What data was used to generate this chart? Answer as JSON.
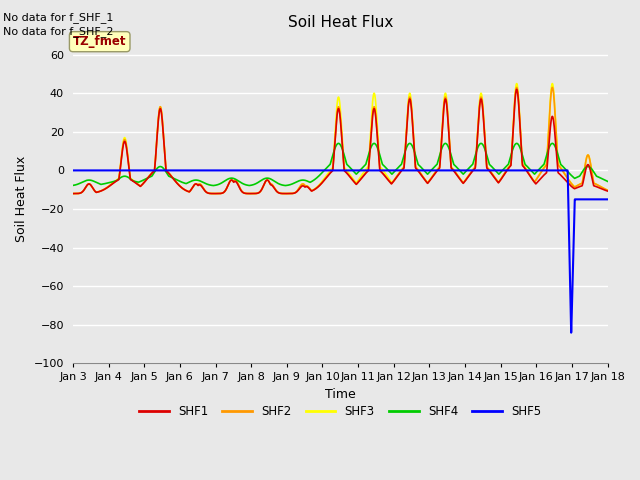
{
  "title": "Soil Heat Flux",
  "xlabel": "Time",
  "ylabel": "Soil Heat Flux",
  "ylim": [
    -100,
    70
  ],
  "yticks": [
    -100,
    -80,
    -60,
    -40,
    -20,
    0,
    20,
    40,
    60
  ],
  "plot_bg": "#e8e8e8",
  "fig_bg": "#e8e8e8",
  "grid_color": "#ffffff",
  "text_no_data": [
    "No data for f_SHF_1",
    "No data for f_SHF_2"
  ],
  "tz_label": "TZ_fmet",
  "colors": {
    "SHF1": "#dd0000",
    "SHF2": "#ff9900",
    "SHF3": "#ffff00",
    "SHF4": "#00cc00",
    "SHF5": "#0000ff"
  },
  "x_tick_labels": [
    "Jan 3",
    "Jan 4",
    "Jan 5",
    "Jan 6",
    "Jan 7",
    "Jan 8",
    "Jan 9",
    "Jan 10",
    "Jan 11",
    "Jan 12",
    "Jan 13",
    "Jan 14",
    "Jan 15",
    "Jan 16",
    "Jan 17",
    "Jan 18"
  ]
}
